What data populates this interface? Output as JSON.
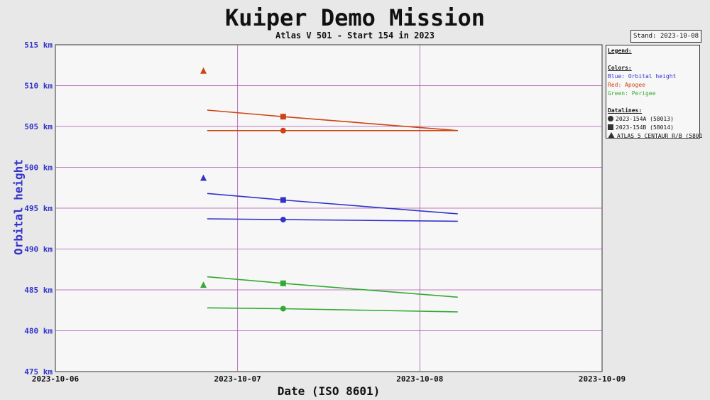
{
  "title": "Kuiper Demo Mission",
  "subtitle": "Atlas V 501 - Start 154 in 2023",
  "stand": "Stand: 2023-10-08",
  "legend": {
    "heading": "Legend:",
    "colors_heading": "Colors:",
    "colors": [
      {
        "text": "Blue: Orbital height",
        "color": "#3333cc"
      },
      {
        "text": "Red: Apogee",
        "color": "#cc4411"
      },
      {
        "text": "Green: Perigee",
        "color": "#33aa33"
      }
    ],
    "datalines_heading": "Datalines:",
    "datalines": [
      {
        "marker": "circle",
        "text": "2023-154A (58013)"
      },
      {
        "marker": "square",
        "text": "2023-154B (58014)"
      },
      {
        "marker": "triangle",
        "text": "ATLAS 5 CENTAUR R/B (5801"
      }
    ]
  },
  "chart_data": {
    "type": "line",
    "xlabel": "Date (ISO 8601)",
    "ylabel": "Orbital height",
    "x_ticks": [
      "2023-10-06",
      "2023-10-07",
      "2023-10-08",
      "2023-10-09"
    ],
    "xlim": [
      "2023-10-06",
      "2023-10-09"
    ],
    "ylim": [
      475,
      515
    ],
    "y_ticks": [
      475,
      480,
      485,
      490,
      495,
      500,
      505,
      510,
      515
    ],
    "y_tick_unit": "km",
    "grid": true,
    "series": [
      {
        "object": "2023-154A (58013)",
        "quantity": "Apogee",
        "color": "#cc4411",
        "marker": "circle",
        "x": [
          "2023-10-06T20:00",
          "2023-10-07T06:00",
          "2023-10-08T05:00"
        ],
        "y": [
          504.5,
          504.5,
          504.5
        ],
        "marker_index": 1
      },
      {
        "object": "2023-154B (58014)",
        "quantity": "Apogee",
        "color": "#cc4411",
        "marker": "square",
        "x": [
          "2023-10-06T20:00",
          "2023-10-07T06:00",
          "2023-10-08T05:00"
        ],
        "y": [
          507.0,
          506.2,
          504.5
        ],
        "marker_index": 1
      },
      {
        "object": "ATLAS 5 CENTAUR R/B (5801",
        "quantity": "Apogee",
        "color": "#cc4411",
        "marker": "triangle",
        "x": [
          "2023-10-06T19:30"
        ],
        "y": [
          511.8
        ],
        "marker_index": 0
      },
      {
        "object": "2023-154A (58013)",
        "quantity": "Orbital height",
        "color": "#3333cc",
        "marker": "circle",
        "x": [
          "2023-10-06T20:00",
          "2023-10-07T06:00",
          "2023-10-08T05:00"
        ],
        "y": [
          493.7,
          493.6,
          493.4
        ],
        "marker_index": 1
      },
      {
        "object": "2023-154B (58014)",
        "quantity": "Orbital height",
        "color": "#3333cc",
        "marker": "square",
        "x": [
          "2023-10-06T20:00",
          "2023-10-07T06:00",
          "2023-10-08T05:00"
        ],
        "y": [
          496.8,
          496.0,
          494.3
        ],
        "marker_index": 1
      },
      {
        "object": "ATLAS 5 CENTAUR R/B (5801",
        "quantity": "Orbital height",
        "color": "#3333cc",
        "marker": "triangle",
        "x": [
          "2023-10-06T19:30"
        ],
        "y": [
          498.7
        ],
        "marker_index": 0
      },
      {
        "object": "2023-154A (58013)",
        "quantity": "Perigee",
        "color": "#33aa33",
        "marker": "circle",
        "x": [
          "2023-10-06T20:00",
          "2023-10-07T06:00",
          "2023-10-08T05:00"
        ],
        "y": [
          482.8,
          482.7,
          482.3
        ],
        "marker_index": 1
      },
      {
        "object": "2023-154B (58014)",
        "quantity": "Perigee",
        "color": "#33aa33",
        "marker": "square",
        "x": [
          "2023-10-06T20:00",
          "2023-10-07T06:00",
          "2023-10-08T05:00"
        ],
        "y": [
          486.6,
          485.8,
          484.1
        ],
        "marker_index": 1
      },
      {
        "object": "ATLAS 5 CENTAUR R/B (5801",
        "quantity": "Perigee",
        "color": "#33aa33",
        "marker": "triangle",
        "x": [
          "2023-10-06T19:30"
        ],
        "y": [
          485.6
        ],
        "marker_index": 0
      }
    ]
  }
}
